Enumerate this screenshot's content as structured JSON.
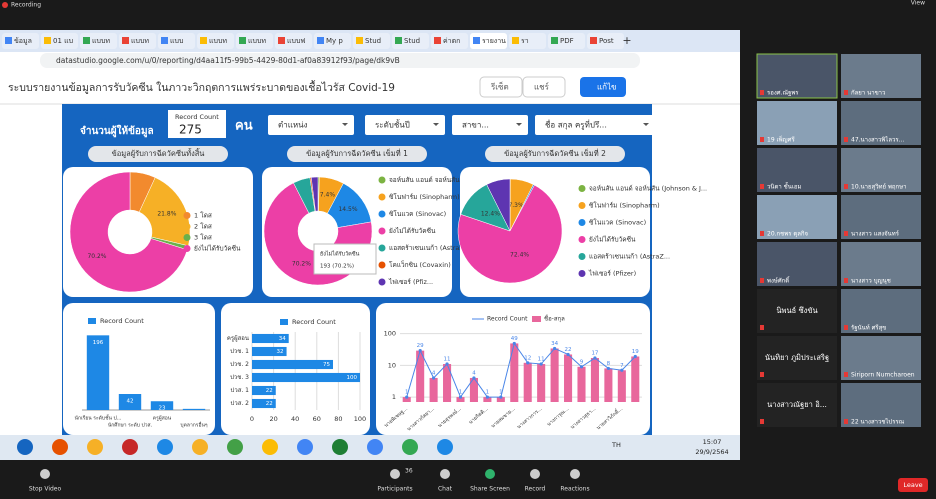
{
  "zoom": {
    "recording": "Recording",
    "view": "View",
    "participants_count": "36",
    "controls": [
      "Stop Video",
      "Participants",
      "Chat",
      "Share Screen",
      "Record",
      "Reactions"
    ],
    "leave": "Leave"
  },
  "browser": {
    "tabs": [
      "ข้อมูล",
      "01 แบ",
      "แบบท",
      "แบบท",
      "แบบ",
      "แบบท",
      "แบบท",
      "แบบฟ",
      "My p",
      "Stud",
      "Stud",
      "ค่าตก",
      "รายงาน",
      "รา",
      "PDF",
      "Post"
    ],
    "url": "datastudio.google.com/u/0/reporting/d4aa11f5-99b5-4429-80d1-af0a83912f93/page/dk9vB"
  },
  "report": {
    "title": "ระบบรายงานข้อมูลการรับวัคซีน ในภาวะวิกฤตการแพร่ระบาดของเชื้อไวรัส Covid-19",
    "buttons": [
      "รีเซ็ต",
      "แชร์",
      "แก้ไข"
    ],
    "respondents_label": "จำนวนผู้ให้ข้อมูล",
    "record_count_label": "Record Count",
    "record_count": 275,
    "unit": "คน",
    "filters": [
      "ตำแหน่ง",
      "ระดับชั้นปี",
      "สาขา...",
      "ชื่อ สกุล ครูที่ปรึ..."
    ],
    "tooltip": {
      "label": "ยังไม่ได้รับวัคซีน",
      "value": "193 (70.2%)"
    }
  },
  "chart_data": [
    {
      "type": "pie",
      "title": "ข้อมูลผู้รับการฉีดวัคซีนทั้งสิ้น",
      "categories": [
        "1 โดส",
        "2 โดส",
        "3 โดส",
        "ยังไม่ได้รับวัคซีน"
      ],
      "values": [
        6.9,
        21.8,
        1.1,
        70.2
      ],
      "value_labels": [
        null,
        "21.8%",
        null,
        "70.2%"
      ],
      "colors": [
        "#f28a2e",
        "#f6b026",
        "#6ab04c",
        "#ec3fa6"
      ]
    },
    {
      "type": "pie",
      "title": "ข้อมูลผู้รับการฉีดวัคซีน เข็มที่ 1",
      "categories": [
        "จอห์นสัน แอนด์ จอห์นสัน (Joh...",
        "ซิโนฟาร์ม (Sinopharm)",
        "ซิโนแวค (Sinovac)",
        "ยังไม่ได้รับวัคซีน",
        "แอสตร้าเซนเนก้า (AstraZ...",
        "โคแว็กซิน (Covaxin)",
        "ไฟเซอร์ (Pfiz..."
      ],
      "values": [
        0.4,
        7.4,
        14.5,
        70.2,
        5.1,
        0.4,
        2
      ],
      "value_labels": [
        null,
        "7.4%",
        "14.5%",
        "70.2%",
        null,
        null,
        null
      ],
      "colors": [
        "#7cb342",
        "#f6a21e",
        "#1e88e5",
        "#ec3fa6",
        "#26a69a",
        "#e65100",
        "#5e35b1"
      ]
    },
    {
      "type": "pie",
      "title": "ข้อมูลผู้รับการฉีดวัคซีน เข็มที่ 2",
      "categories": [
        "จอห์นสัน แอนด์ จอห์นสัน (Johnson & J...",
        "ซิโนฟาร์ม (Sinopharm)",
        "ซิโนแวค (Sinovac)",
        "ยังไม่ได้รับวัคซีน",
        "แอสตร้าเซนเนก้า (AstraZ...",
        "ไฟเซอร์ (Pfizer)"
      ],
      "values": [
        0.1,
        7.3,
        0.4,
        72.4,
        12.4,
        7.4
      ],
      "value_labels": [
        null,
        "7.3%",
        null,
        "72.4%",
        "12.4%",
        null
      ],
      "colors": [
        "#7cb342",
        "#f6a21e",
        "#1e88e5",
        "#ec3fa6",
        "#26a69a",
        "#5e35b1"
      ]
    },
    {
      "type": "bar",
      "legend": "Record Count",
      "categories": [
        "นักเรียน ระดับชั้น ป...",
        "นักศึกษา ระดับ ปวส.",
        "ครูผู้สอน",
        "บุคลากรอื่นๆ"
      ],
      "values": [
        196,
        42,
        23,
        3
      ],
      "color": "#1e88e5",
      "ylim": [
        0,
        210
      ]
    },
    {
      "type": "hbar",
      "legend": "Record Count",
      "categories": [
        "ครูผู้สอน",
        "ปวช. 1",
        "ปวช. 2",
        "ปวช. 3",
        "ปวส. 1",
        "ปวส. 2"
      ],
      "values": [
        34,
        32,
        75,
        100,
        22,
        22
      ],
      "color": "#1e88e5",
      "xlim": [
        0,
        100
      ],
      "xticks": [
        0,
        20,
        40,
        60,
        80,
        100
      ]
    },
    {
      "type": "combo",
      "categories": [
        "นายพิเชษฐ...",
        null,
        "นางสาวกัลยา...",
        null,
        "นายสุรพงษ์...",
        null,
        "นายกิตติ...",
        null,
        "นายสมชาย...",
        null,
        "นางสาวการ...",
        null,
        "นางการุณ...",
        null,
        "นางสาวสุธา...",
        null,
        "นายสาวิภักดิ์...",
        null
      ],
      "series": [
        {
          "name": "Record Count",
          "color": "#4a86e8",
          "values": [
            1,
            29,
            4,
            11,
            1,
            4,
            1,
            1,
            49,
            12,
            11,
            34,
            22,
            9,
            17,
            8,
            7,
            19
          ]
        },
        {
          "name": "ชื่อ-สกุล",
          "color": "#e8679c",
          "values": [
            1,
            29,
            4,
            11,
            1,
            4,
            1,
            1,
            49,
            12,
            11,
            34,
            22,
            9,
            17,
            8,
            7,
            19
          ]
        }
      ],
      "log": true,
      "ylim": [
        0.7,
        150
      ],
      "yticks": [
        1,
        10,
        100
      ]
    }
  ],
  "taskbar": {
    "lang": "TH",
    "time": "15:07",
    "date": "29/9/2564"
  },
  "participants": [
    "รองศ.ณัฐพร",
    "กัลยา นาขาว",
    "19 เพ็ญศรี",
    "47.นางสาวพิไลวร...",
    "วนิดา ชั้นเอม",
    "10.นายสุวิทย์ พฤกษา",
    "20.กชพร ดุลกิจ",
    "นางสาว แสงจันทร์",
    "พงษ์ศักดิ์",
    "นางสาว บุญนุช",
    "นิพนธ์ ซึงขัน",
    "รัฐนันท์ ศรีสุข",
    "นันทิยา ภูมิประเสริฐ",
    "Siriporn Numcharoen",
    "นางสาวณัฐยา อิ...",
    "22 นางสาวชไปรรณ"
  ]
}
